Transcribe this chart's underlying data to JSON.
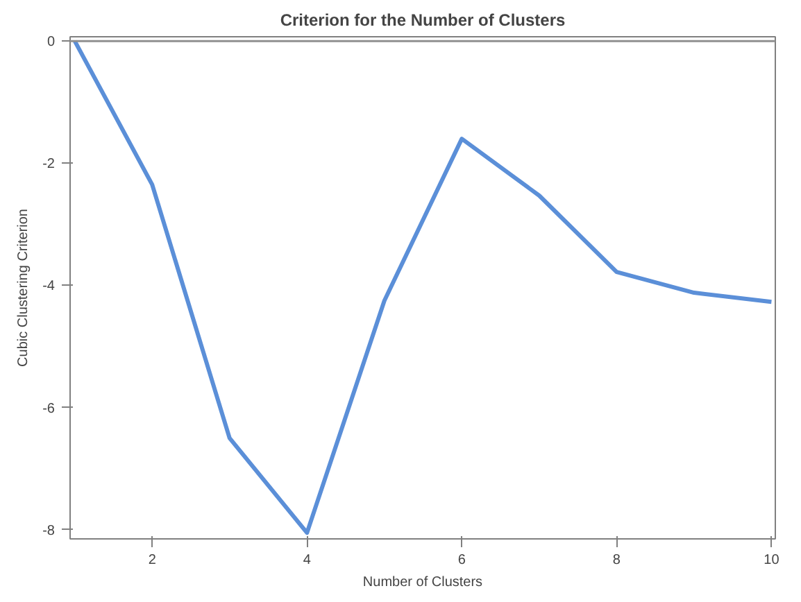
{
  "chart_data": {
    "type": "line",
    "title": "Criterion for the Number of Clusters",
    "xlabel": "Number of Clusters",
    "ylabel": "Cubic Clustering Criterion",
    "x": [
      1,
      2,
      3,
      4,
      5,
      6,
      7,
      8,
      9,
      10
    ],
    "series": [
      {
        "color": "#5b8fd8",
        "values": [
          0,
          -2.35,
          -6.5,
          -8.05,
          -4.25,
          -1.6,
          -2.53,
          -3.78,
          -4.12,
          -4.27
        ]
      }
    ],
    "xlim": [
      0.94,
      10.05
    ],
    "xticks": [
      2,
      4,
      6,
      8,
      10
    ],
    "ylim": [
      -8.15,
      0.07
    ],
    "yticks": [
      -8,
      -6,
      -4,
      -2,
      0
    ],
    "ref_lines": [
      {
        "axis": "y",
        "value": 0,
        "color": "#909090"
      }
    ],
    "grid": false,
    "marker": "none",
    "line_style": "solid"
  }
}
